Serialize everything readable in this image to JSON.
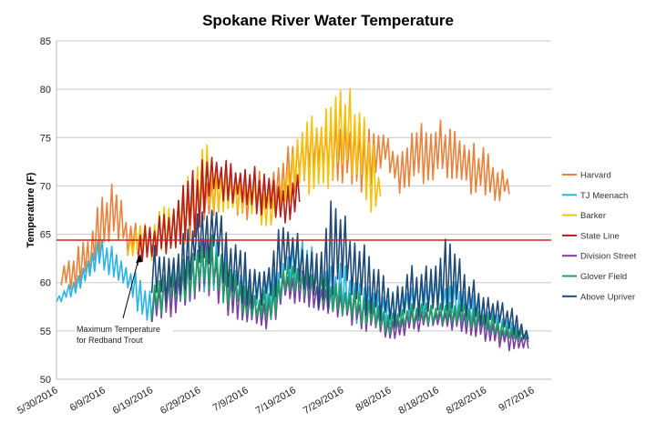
{
  "chart_data": {
    "type": "line",
    "title": "Spokane River Water Temperature",
    "xlabel": "",
    "ylabel": "Temperature (F)",
    "ylim": [
      50,
      85
    ],
    "yticks": [
      50,
      55,
      60,
      65,
      70,
      75,
      80,
      85
    ],
    "xlim": [
      "5/30/2016",
      "9/7/2016"
    ],
    "xticks": [
      "5/30/2016",
      "6/9/2016",
      "6/19/2016",
      "6/29/2016",
      "7/9/2016",
      "7/19/2016",
      "7/29/2016",
      "8/8/2016",
      "8/18/2016",
      "8/28/2016",
      "9/7/2016"
    ],
    "grid": "horizontal",
    "legend_placement": "right",
    "threshold": {
      "value": 64.4,
      "color": "#d42020"
    },
    "annotation": {
      "line1": "Maximum Temperature",
      "line2": "for Redband Trout"
    },
    "series_note_format": "daily [day-offset from 5/30/2016 is not printed]; points are [date, daily low, daily high]",
    "series": [
      {
        "name": "Harvard",
        "color": "#e8823c",
        "points": [
          [
            "5/31",
            59.5,
            62
          ],
          [
            "6/4",
            60,
            64
          ],
          [
            "6/7",
            62,
            67
          ],
          [
            "6/9",
            64,
            70
          ],
          [
            "6/11",
            66,
            70.5
          ],
          [
            "6/14",
            63,
            67
          ],
          [
            "6/19",
            63,
            66
          ],
          [
            "6/24",
            64,
            68
          ],
          [
            "6/29",
            66,
            72
          ],
          [
            "7/4",
            68,
            72
          ],
          [
            "7/9",
            67,
            71
          ],
          [
            "7/14",
            68,
            72
          ],
          [
            "7/19",
            70,
            75
          ],
          [
            "7/24",
            72,
            77
          ],
          [
            "7/29",
            71,
            77
          ],
          [
            "8/3",
            70,
            76
          ],
          [
            "8/7",
            73,
            76
          ],
          [
            "8/10",
            69.5,
            73
          ],
          [
            "8/13",
            71,
            76
          ],
          [
            "8/18",
            71,
            77.5
          ],
          [
            "8/23",
            70,
            75
          ],
          [
            "8/28",
            69,
            74
          ],
          [
            "9/2",
            69,
            71
          ]
        ]
      },
      {
        "name": "TJ Meenach",
        "color": "#2ab4e6",
        "points": [
          [
            "5/30",
            58,
            58.5
          ],
          [
            "6/2",
            58.5,
            60
          ],
          [
            "6/5",
            60,
            62
          ],
          [
            "6/8",
            62,
            65
          ],
          [
            "6/11",
            61,
            64
          ],
          [
            "6/14",
            59,
            62
          ],
          [
            "6/17",
            57,
            61
          ],
          [
            "6/19",
            56,
            59
          ],
          [
            "6/22",
            58,
            62
          ],
          [
            "6/24",
            58,
            62
          ],
          [
            "6/29",
            59,
            64
          ],
          [
            "7/2",
            60,
            65
          ],
          [
            "7/5",
            58,
            63
          ],
          [
            "7/9",
            57,
            62
          ],
          [
            "7/12",
            57,
            61
          ],
          [
            "7/15",
            57,
            62
          ],
          [
            "7/17",
            59,
            64
          ],
          [
            "7/20",
            60,
            65
          ],
          [
            "7/24",
            58,
            63
          ],
          [
            "7/29",
            57,
            62
          ],
          [
            "8/3",
            56,
            61
          ],
          [
            "8/8",
            56,
            59
          ],
          [
            "8/13",
            57,
            60
          ],
          [
            "8/18",
            57,
            61
          ],
          [
            "8/23",
            56,
            60
          ],
          [
            "8/28",
            55,
            58
          ],
          [
            "9/2",
            54,
            57
          ],
          [
            "9/6",
            54,
            55
          ]
        ]
      },
      {
        "name": "Barker",
        "color": "#f7c10a",
        "points": [
          [
            "6/14",
            63,
            65
          ],
          [
            "6/19",
            63,
            67
          ],
          [
            "6/24",
            64,
            69
          ],
          [
            "6/29",
            66,
            74
          ],
          [
            "7/1",
            68,
            74.5
          ],
          [
            "7/5",
            68,
            72
          ],
          [
            "7/10",
            67,
            71
          ],
          [
            "7/15",
            66,
            70
          ],
          [
            "7/19",
            70,
            75
          ],
          [
            "7/22",
            70,
            77
          ],
          [
            "7/26",
            71,
            79
          ],
          [
            "7/29",
            73,
            81.5
          ],
          [
            "8/1",
            72,
            79
          ],
          [
            "8/4",
            68,
            76
          ],
          [
            "8/6",
            69,
            71
          ]
        ]
      },
      {
        "name": "State Line",
        "color": "#b51d1d",
        "points": [
          [
            "6/16",
            62,
            66
          ],
          [
            "6/19",
            63,
            66
          ],
          [
            "6/24",
            64,
            69
          ],
          [
            "6/29",
            66,
            73
          ],
          [
            "7/2",
            69,
            74
          ],
          [
            "7/5",
            69,
            73
          ],
          [
            "7/9",
            68,
            72
          ],
          [
            "7/12",
            67,
            72
          ],
          [
            "7/15",
            67,
            71
          ],
          [
            "7/17",
            66,
            70
          ],
          [
            "7/20",
            68,
            72
          ]
        ]
      },
      {
        "name": "Division Street",
        "color": "#7b3fa3",
        "points": [
          [
            "6/19",
            56.3,
            60.5
          ],
          [
            "6/24",
            57.3,
            61.5
          ],
          [
            "6/29",
            59.3,
            64.5
          ],
          [
            "7/2",
            59.3,
            64.5
          ],
          [
            "7/5",
            57.3,
            61.5
          ],
          [
            "7/9",
            56.3,
            59.5
          ],
          [
            "7/12",
            55.3,
            58.5
          ],
          [
            "7/15",
            56.3,
            60.5
          ],
          [
            "7/17",
            58.3,
            61.5
          ],
          [
            "7/20",
            58.3,
            61.5
          ],
          [
            "7/24",
            57.3,
            60.5
          ],
          [
            "7/29",
            56.3,
            59.5
          ],
          [
            "8/3",
            55.3,
            58.5
          ],
          [
            "8/8",
            54.3,
            56.5
          ],
          [
            "8/13",
            55.3,
            57.5
          ],
          [
            "8/18",
            55.3,
            57.5
          ],
          [
            "8/23",
            55.3,
            57.5
          ],
          [
            "8/28",
            54.3,
            56.5
          ],
          [
            "9/2",
            53.3,
            55.5
          ],
          [
            "9/6",
            53.3,
            54.5
          ]
        ]
      },
      {
        "name": "Glover Field",
        "color": "#1ca35f",
        "points": [
          [
            "6/19",
            57,
            61
          ],
          [
            "6/24",
            58,
            62
          ],
          [
            "6/29",
            60,
            65
          ],
          [
            "7/2",
            60,
            65
          ],
          [
            "7/5",
            58,
            62
          ],
          [
            "7/9",
            57,
            60
          ],
          [
            "7/12",
            56,
            59
          ],
          [
            "7/15",
            57,
            61
          ],
          [
            "7/17",
            59,
            62
          ],
          [
            "7/20",
            59,
            62
          ],
          [
            "7/24",
            58,
            61
          ],
          [
            "7/29",
            57,
            60
          ],
          [
            "8/3",
            56,
            59
          ],
          [
            "8/8",
            55,
            57
          ],
          [
            "8/13",
            56,
            58
          ],
          [
            "8/18",
            56,
            58
          ],
          [
            "8/23",
            56,
            58
          ],
          [
            "8/28",
            55,
            57
          ],
          [
            "9/2",
            54,
            56
          ],
          [
            "9/6",
            54,
            55
          ]
        ]
      },
      {
        "name": "Above Upriver",
        "color": "#1f4a78",
        "points": [
          [
            "6/19",
            58,
            64
          ],
          [
            "6/24",
            59,
            64
          ],
          [
            "6/29",
            62,
            68
          ],
          [
            "7/2",
            63,
            69
          ],
          [
            "7/5",
            60,
            66
          ],
          [
            "7/9",
            58,
            63
          ],
          [
            "7/12",
            58,
            61
          ],
          [
            "7/15",
            59,
            65
          ],
          [
            "7/17",
            61,
            67
          ],
          [
            "7/20",
            60,
            65
          ],
          [
            "7/24",
            58,
            63
          ],
          [
            "7/27",
            59,
            70
          ],
          [
            "7/29",
            61,
            68
          ],
          [
            "8/1",
            58,
            65
          ],
          [
            "8/4",
            57,
            63
          ],
          [
            "8/8",
            56,
            60
          ],
          [
            "8/13",
            57,
            62
          ],
          [
            "8/18",
            57,
            64
          ],
          [
            "8/21",
            58,
            66
          ],
          [
            "8/23",
            57,
            62
          ],
          [
            "8/28",
            56,
            59
          ],
          [
            "9/2",
            55,
            58
          ],
          [
            "9/6",
            54,
            55
          ]
        ]
      }
    ]
  }
}
